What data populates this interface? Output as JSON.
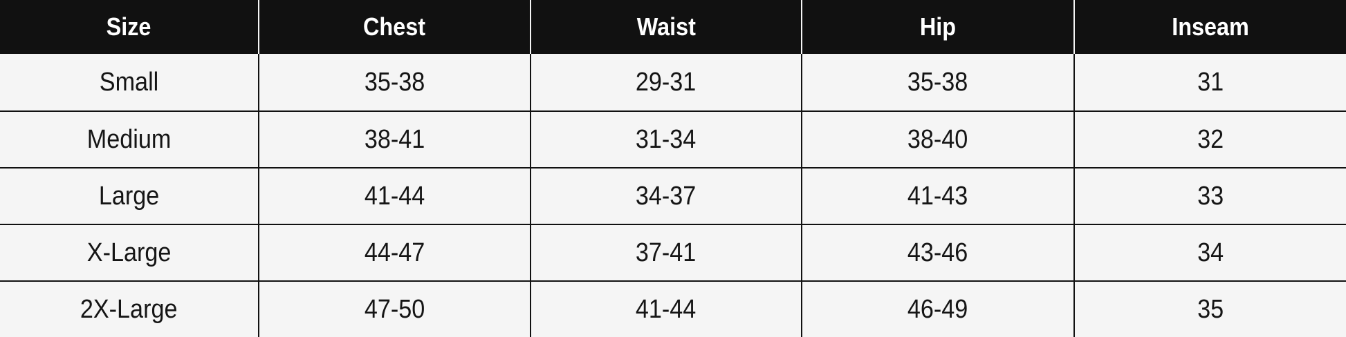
{
  "table": {
    "headers": [
      "Size",
      "Chest",
      "Waist",
      "Hip",
      "Inseam"
    ],
    "rows": [
      [
        "Small",
        "35-38",
        "29-31",
        "35-38",
        "31"
      ],
      [
        "Medium",
        "38-41",
        "31-34",
        "38-40",
        "32"
      ],
      [
        "Large",
        "41-44",
        "34-37",
        "41-43",
        "33"
      ],
      [
        "X-Large",
        "44-47",
        "37-41",
        "43-46",
        "34"
      ],
      [
        "2X-Large",
        "47-50",
        "41-44",
        "46-49",
        "35"
      ]
    ]
  },
  "colors": {
    "header_bg": "#111111",
    "header_text": "#ffffff",
    "body_bg": "#f5f5f5",
    "grid": "#111111"
  }
}
